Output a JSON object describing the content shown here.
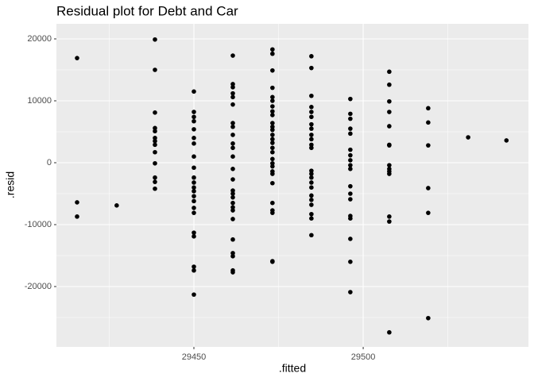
{
  "chart_data": {
    "type": "scatter",
    "title": "Residual plot for Debt and Car",
    "x_label": ".fitted",
    "y_label": ".resid",
    "xlim": [
      29409.4,
      29548.8
    ],
    "ylim": [
      -29744,
      22436
    ],
    "xticks": [
      29450,
      29500
    ],
    "yticks": [
      -20000,
      -10000,
      0,
      10000,
      20000
    ],
    "grid": true,
    "color": "#000000",
    "x": [
      29415.5,
      29415.5,
      29415.5,
      29427.2,
      29438.5,
      29438.5,
      29438.5,
      29438.5,
      29438.5,
      29438.5,
      29438.5,
      29438.5,
      29438.5,
      29438.5,
      29438.5,
      29438.5,
      29438.5,
      29450,
      29450,
      29450,
      29450,
      29450,
      29450,
      29450,
      29450,
      29450,
      29450,
      29450,
      29450,
      29450,
      29450,
      29450,
      29450,
      29450,
      29450,
      29450,
      29450,
      29450,
      29450,
      29461.5,
      29461.5,
      29461.5,
      29461.5,
      29461.5,
      29461.5,
      29461.5,
      29461.5,
      29461.5,
      29461.5,
      29461.5,
      29461.5,
      29461.5,
      29461.5,
      29461.5,
      29461.5,
      29461.5,
      29461.5,
      29461.5,
      29461.5,
      29461.5,
      29461.5,
      29461.5,
      29461.5,
      29461.5,
      29461.5,
      29473.2,
      29473.2,
      29473.2,
      29473.2,
      29473.2,
      29473.2,
      29473.2,
      29473.2,
      29473.2,
      29473.2,
      29473.2,
      29473.2,
      29473.2,
      29473.2,
      29473.2,
      29473.2,
      29473.2,
      29473.2,
      29473.2,
      29473.2,
      29473.2,
      29473.2,
      29473.2,
      29473.2,
      29473.2,
      29473.2,
      29473.2,
      29473.2,
      29484.7,
      29484.7,
      29484.7,
      29484.7,
      29484.7,
      29484.7,
      29484.7,
      29484.7,
      29484.7,
      29484.7,
      29484.7,
      29484.7,
      29484.7,
      29484.7,
      29484.7,
      29484.7,
      29484.7,
      29484.7,
      29484.7,
      29484.7,
      29484.7,
      29484.7,
      29484.7,
      29496.2,
      29496.2,
      29496.2,
      29496.2,
      29496.2,
      29496.2,
      29496.2,
      29496.2,
      29496.2,
      29496.2,
      29496.2,
      29496.2,
      29496.2,
      29496.2,
      29496.2,
      29496.2,
      29496.2,
      29496.2,
      29507.7,
      29507.7,
      29507.7,
      29507.7,
      29507.7,
      29507.7,
      29507.7,
      29507.7,
      29507.7,
      29507.7,
      29507.7,
      29507.7,
      29507.7,
      29507.7,
      29519.2,
      29519.2,
      29519.2,
      29519.2,
      29519.2,
      29519.2,
      29531,
      29542.3
    ],
    "y": [
      16900,
      -6400,
      -8700,
      -6900,
      19900,
      15000,
      8100,
      5600,
      5100,
      4000,
      3500,
      2900,
      1700,
      -100,
      -2400,
      -3100,
      -4200,
      11500,
      8200,
      7400,
      6700,
      5400,
      4000,
      3100,
      1000,
      -800,
      -2400,
      -3200,
      -4000,
      -4600,
      -5400,
      -6200,
      -7300,
      -8100,
      -11300,
      -11900,
      -16800,
      -17400,
      -21300,
      17300,
      12700,
      12200,
      11200,
      10600,
      9400,
      6400,
      5800,
      4500,
      3100,
      2400,
      1000,
      -1000,
      -2700,
      -4500,
      -5000,
      -5600,
      -6500,
      -7200,
      -7700,
      -9100,
      -12400,
      -14600,
      -15100,
      -17400,
      -17700,
      18300,
      17600,
      14900,
      12100,
      10600,
      10000,
      9100,
      8300,
      7700,
      6400,
      5800,
      5300,
      4500,
      3800,
      3200,
      2400,
      1700,
      600,
      -100,
      -600,
      -1400,
      -1800,
      -3300,
      -6500,
      -7700,
      -8100,
      -15900,
      -16000,
      17200,
      15300,
      10800,
      9000,
      8200,
      7400,
      6200,
      5500,
      4500,
      3800,
      2900,
      2400,
      -1300,
      -1800,
      -2400,
      -3200,
      -4000,
      -5300,
      -6000,
      -6800,
      -8300,
      -9000,
      -11700,
      10300,
      7900,
      7100,
      5500,
      4700,
      2100,
      1200,
      400,
      -400,
      -1000,
      -3800,
      -5000,
      -5900,
      -8600,
      -9000,
      -12300,
      -16000,
      -20900,
      14700,
      12600,
      9900,
      8200,
      5900,
      2900,
      2800,
      -400,
      -1000,
      -1400,
      -1800,
      -8700,
      -9500,
      -27400,
      8800,
      6500,
      2800,
      -4100,
      -8100,
      -25100,
      4100,
      3600
    ]
  }
}
